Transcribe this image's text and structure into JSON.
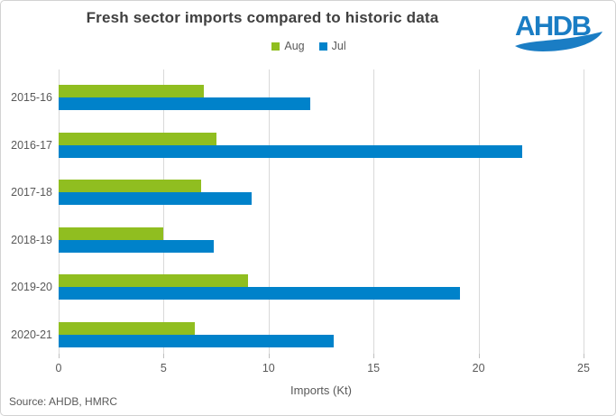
{
  "title": "Fresh sector imports compared to historic data",
  "logo": {
    "text": "AHDB",
    "color": "#1a7dc4"
  },
  "source": "Source: AHDB, HMRC",
  "colors": {
    "aug_green": "#90be20",
    "jul_blue": "#0082ca",
    "title_text": "#404040",
    "axis_text": "#595959",
    "gridline": "#d9d9d9",
    "border": "#d2d2d2"
  },
  "chart_data": {
    "type": "bar",
    "orientation": "horizontal",
    "title": "Fresh sector imports compared to historic data",
    "categories": [
      "2015-16",
      "2016-17",
      "2017-18",
      "2018-19",
      "2019-20",
      "2020-21"
    ],
    "series": [
      {
        "name": "Aug",
        "color": "#90be20",
        "values": [
          6.9,
          7.5,
          6.8,
          5.0,
          9.0,
          6.5
        ]
      },
      {
        "name": "Jul",
        "color": "#0082ca",
        "values": [
          12.0,
          22.1,
          9.2,
          7.4,
          19.1,
          13.1
        ]
      }
    ],
    "xlabel": "Imports (Kt)",
    "ylabel": "",
    "xlim": [
      0,
      25
    ],
    "x_ticks": [
      0,
      5,
      10,
      15,
      20,
      25
    ],
    "grid": true,
    "legend_position": "top"
  }
}
